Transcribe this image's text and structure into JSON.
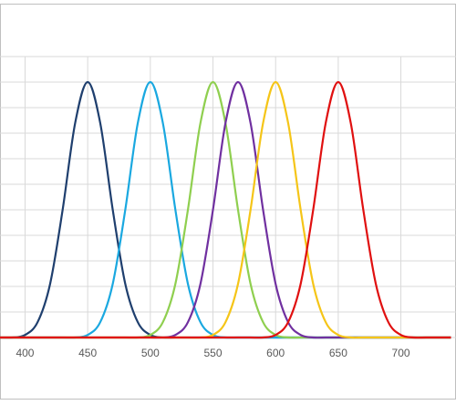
{
  "chart_data": {
    "type": "line",
    "x": [
      380,
      390,
      400,
      410,
      420,
      430,
      440,
      450,
      460,
      470,
      480,
      490,
      500,
      510,
      520,
      530,
      540,
      550,
      560,
      570,
      580,
      590,
      600,
      610,
      620,
      630,
      640,
      650,
      660,
      670,
      680,
      690,
      700,
      710,
      720,
      730,
      740
    ],
    "series": [
      {
        "color": "#1f3f6e",
        "values": [
          0,
          0,
          0.01,
          0.06,
          0.21,
          0.5,
          0.84,
          1,
          0.84,
          0.5,
          0.21,
          0.06,
          0.01,
          0,
          0,
          0,
          0,
          0,
          0,
          0,
          0,
          0,
          0,
          0,
          0,
          0,
          0,
          0,
          0,
          0,
          0,
          0,
          0,
          0,
          0,
          0,
          0
        ]
      },
      {
        "color": "#1aa8e0",
        "values": [
          0,
          0,
          0,
          0,
          0,
          0,
          0,
          0.01,
          0.06,
          0.21,
          0.5,
          0.84,
          1,
          0.84,
          0.5,
          0.21,
          0.06,
          0.01,
          0,
          0,
          0,
          0,
          0,
          0,
          0,
          0,
          0,
          0,
          0,
          0,
          0,
          0,
          0,
          0,
          0,
          0,
          0
        ]
      },
      {
        "color": "#8fcf4f",
        "values": [
          0,
          0,
          0,
          0,
          0,
          0,
          0,
          0,
          0,
          0,
          0,
          0,
          0.01,
          0.06,
          0.21,
          0.5,
          0.84,
          1,
          0.84,
          0.5,
          0.21,
          0.06,
          0.01,
          0,
          0,
          0,
          0,
          0,
          0,
          0,
          0,
          0,
          0,
          0,
          0,
          0,
          0
        ]
      },
      {
        "color": "#7030a0",
        "values": [
          0,
          0,
          0,
          0,
          0,
          0,
          0,
          0,
          0,
          0,
          0,
          0,
          0,
          0,
          0.01,
          0.06,
          0.21,
          0.5,
          0.84,
          1,
          0.84,
          0.5,
          0.21,
          0.06,
          0.01,
          0,
          0,
          0,
          0,
          0,
          0,
          0,
          0,
          0,
          0,
          0,
          0
        ]
      },
      {
        "color": "#f5c518",
        "values": [
          0,
          0,
          0,
          0,
          0,
          0,
          0,
          0,
          0,
          0,
          0,
          0,
          0,
          0,
          0,
          0,
          0,
          0.01,
          0.06,
          0.21,
          0.5,
          0.84,
          1,
          0.84,
          0.5,
          0.21,
          0.06,
          0.01,
          0,
          0,
          0,
          0,
          0,
          0,
          0,
          0,
          0
        ]
      },
      {
        "color": "#e01010",
        "values": [
          0,
          0,
          0,
          0,
          0,
          0,
          0,
          0,
          0,
          0,
          0,
          0,
          0,
          0,
          0,
          0,
          0,
          0,
          0,
          0,
          0,
          0,
          0.01,
          0.06,
          0.21,
          0.5,
          0.84,
          1,
          0.84,
          0.5,
          0.21,
          0.06,
          0.01,
          0,
          0,
          0,
          0
        ]
      }
    ],
    "xlim": [
      380,
      744
    ],
    "xticks": [
      400,
      450,
      500,
      550,
      600,
      650,
      700
    ],
    "ylim": [
      0,
      1.1
    ],
    "yticks": [
      0,
      0.1,
      0.2,
      0.3,
      0.4,
      0.5,
      0.6,
      0.7,
      0.8,
      0.9,
      1,
      1.1
    ],
    "grid": true
  }
}
